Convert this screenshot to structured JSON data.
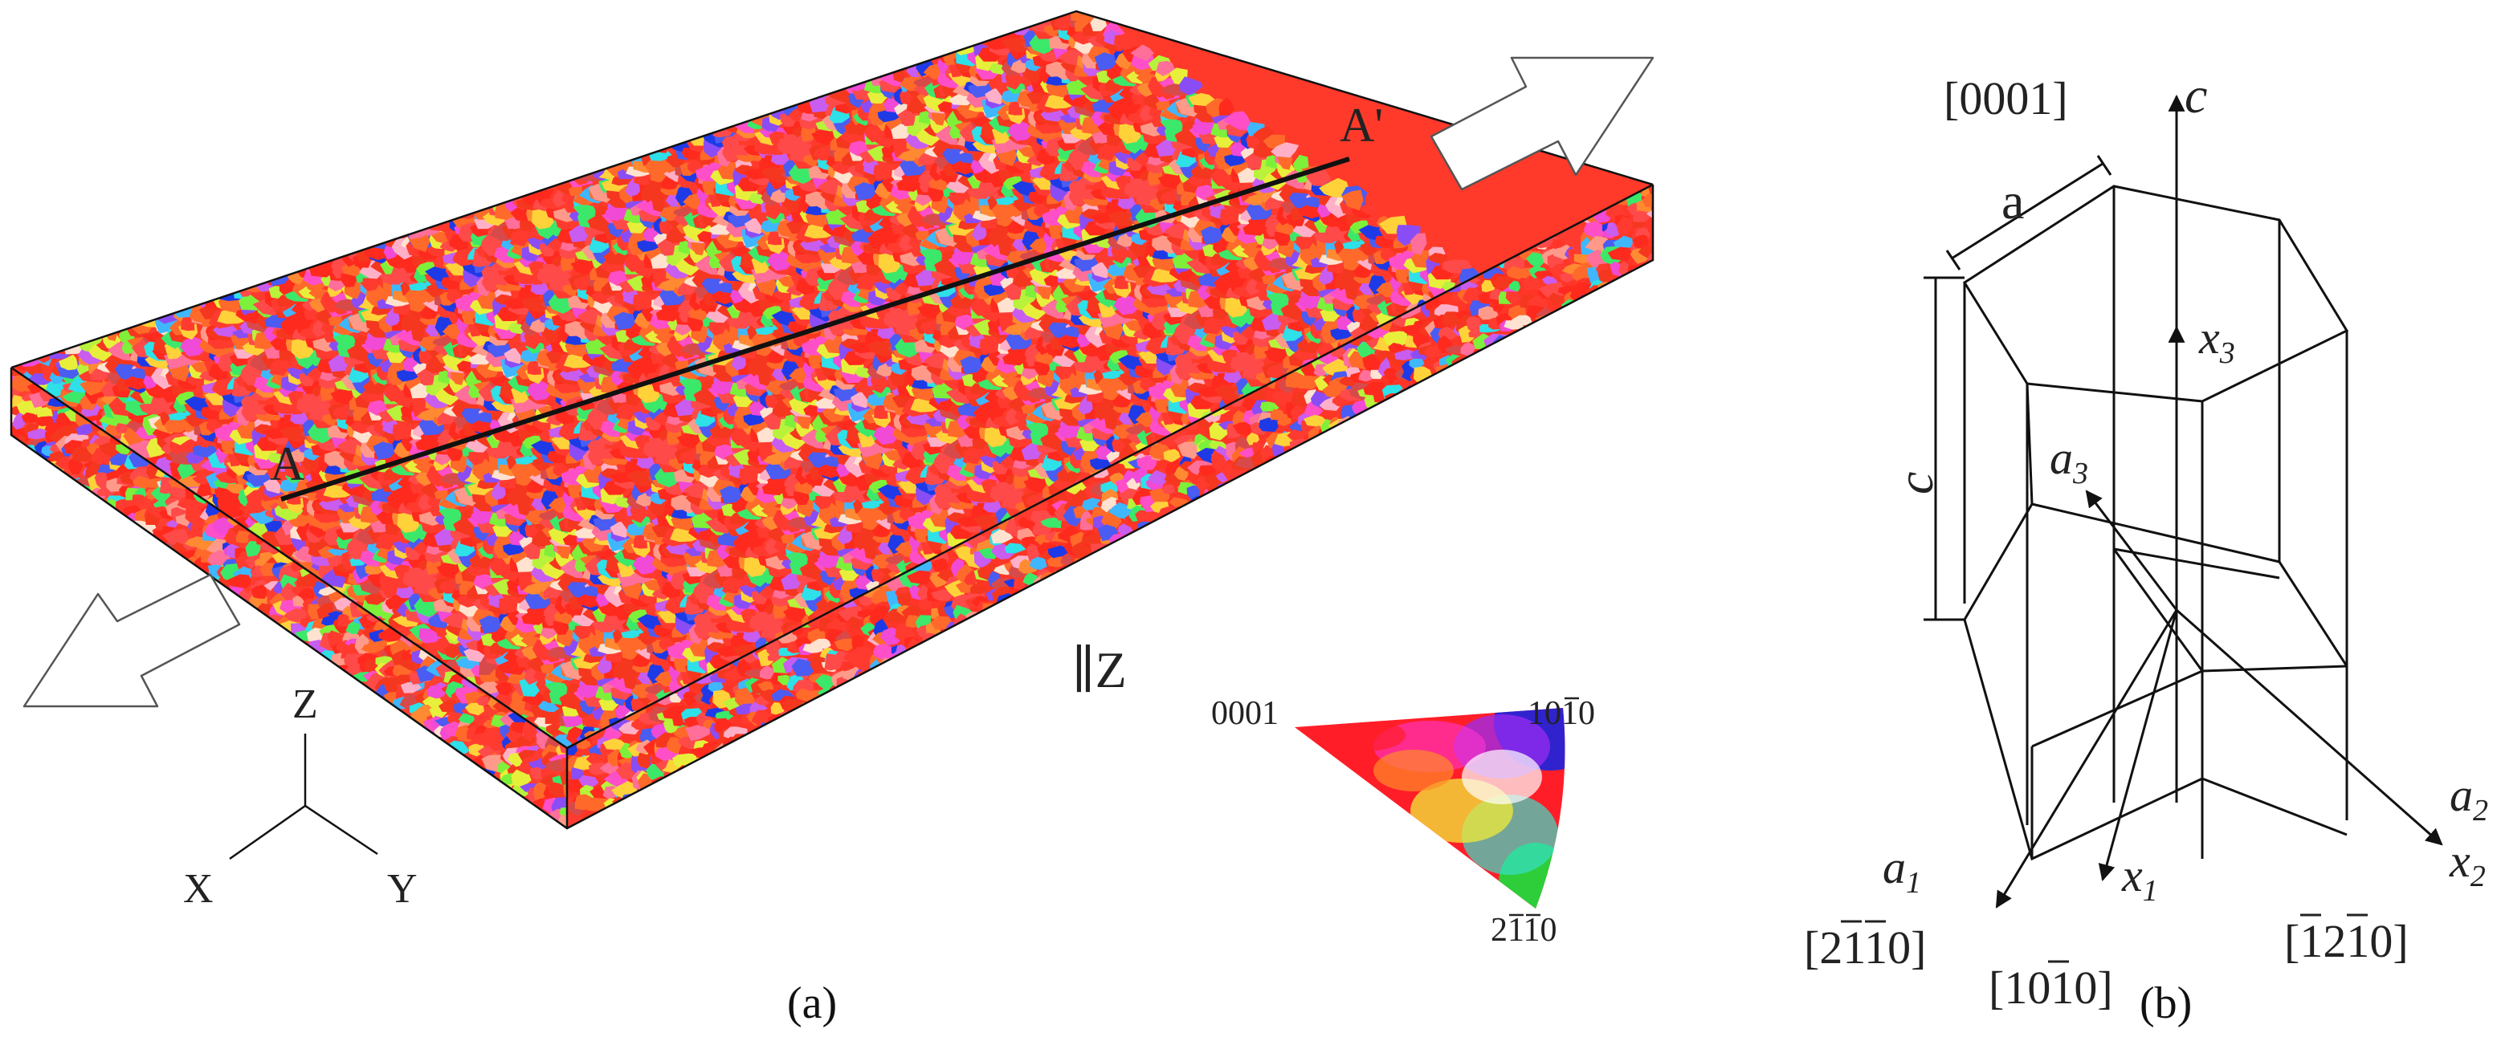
{
  "panel_a": {
    "caption": "(a)",
    "section_start": "A",
    "section_end": "A'",
    "normal_axis": "∥Z",
    "triad": {
      "z": "Z",
      "x": "X",
      "y": "Y"
    },
    "ipf_key": {
      "corner_basal": "0001",
      "corner_prism_1": "1010",
      "corner_prism_2": "2110",
      "colors": {
        "basal": "#ff1e28",
        "prism_1": "#1a24e0",
        "prism_2": "#22d83a"
      }
    },
    "grain_palette": [
      "#ff2a1e",
      "#ff3b30",
      "#f5371f",
      "#ff4a4a",
      "#ff6a2a",
      "#ff8a32",
      "#ff6f9a",
      "#ff4fc8",
      "#f04ad6",
      "#c85df0",
      "#8a4df5",
      "#4a5cf2",
      "#1e3ae6",
      "#3fb7ff",
      "#2ee0e8",
      "#3ce86a",
      "#7ef03a",
      "#b8f23a",
      "#e8ef3a",
      "#ffd23a",
      "#ffb0c8",
      "#ffe2d0",
      "#ff9a8a",
      "#d84a4a"
    ]
  },
  "panel_b": {
    "caption": "(b)",
    "c_direction": "[0001]",
    "c_axis": "c",
    "lattice_a": "a",
    "lattice_c": "c",
    "x3": "x",
    "x3_sub": "3",
    "a3": "a",
    "a3_sub": "3",
    "a2": "a",
    "a2_sub": "2",
    "x2": "x",
    "x2_sub": "2",
    "a1": "a",
    "a1_sub": "1",
    "x1": "x",
    "x1_sub": "1",
    "dir_a1": "[2110]",
    "dir_x1": "[1010]",
    "dir_x2": "[1210]"
  }
}
